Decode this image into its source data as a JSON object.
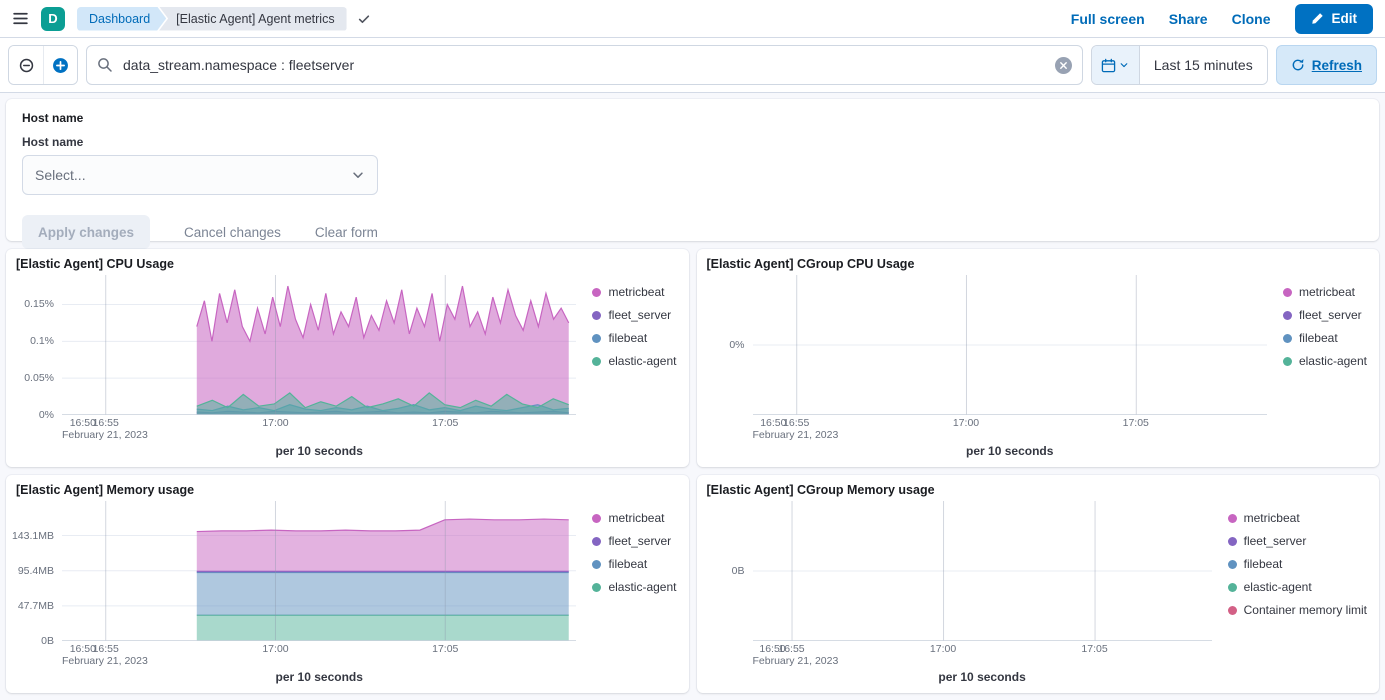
{
  "colors": {
    "primary": "#0071c2",
    "link": "#006bb8",
    "teal": "#0b9e94"
  },
  "header": {
    "space_initial": "D",
    "breadcrumbs": {
      "first": "Dashboard",
      "last": "[Elastic Agent] Agent metrics"
    },
    "actions": {
      "full_screen": "Full screen",
      "share": "Share",
      "clone": "Clone",
      "edit": "Edit"
    }
  },
  "query_bar": {
    "query": "data_stream.namespace : fleetserver",
    "time_range": "Last 15 minutes",
    "refresh_label": "Refresh"
  },
  "controls": {
    "panel_title": "Host name",
    "field_label": "Host name",
    "select_placeholder": "Select...",
    "apply_label": "Apply changes",
    "cancel_label": "Cancel changes",
    "clear_label": "Clear form"
  },
  "chart_data": [
    {
      "id": "cpu-usage",
      "type": "area",
      "title": "[Elastic Agent] CPU Usage",
      "x_title": "per 10 seconds",
      "date_label": "February 21, 2023",
      "x_ticks": [
        {
          "label": "16:50",
          "f": 0.015,
          "grid": false
        },
        {
          "label": "16:55",
          "f": 0.085,
          "grid": true
        },
        {
          "label": "17:00",
          "f": 0.415,
          "grid": true
        },
        {
          "label": "17:05",
          "f": 0.745,
          "grid": true
        }
      ],
      "y_ticks": [
        {
          "label": "0%",
          "v": 0
        },
        {
          "label": "0.05%",
          "v": 0.05
        },
        {
          "label": "0.1%",
          "v": 0.1
        },
        {
          "label": "0.15%",
          "v": 0.15
        }
      ],
      "ymin": 0,
      "ymax": 0.19,
      "y_unit": "%",
      "stacked": false,
      "x_range": [
        0.262,
        0.985
      ],
      "series": [
        {
          "name": "metricbeat",
          "color": "#C765C1",
          "values": [
            0.12,
            0.155,
            0.1,
            0.165,
            0.125,
            0.17,
            0.12,
            0.1,
            0.145,
            0.11,
            0.16,
            0.12,
            0.175,
            0.13,
            0.105,
            0.15,
            0.115,
            0.165,
            0.11,
            0.14,
            0.12,
            0.16,
            0.105,
            0.135,
            0.115,
            0.155,
            0.125,
            0.17,
            0.11,
            0.145,
            0.12,
            0.165,
            0.1,
            0.15,
            0.13,
            0.175,
            0.12,
            0.14,
            0.11,
            0.16,
            0.125,
            0.17,
            0.135,
            0.115,
            0.155,
            0.12,
            0.165,
            0.13,
            0.145,
            0.125
          ]
        },
        {
          "name": "fleet_server",
          "color": "#8465C2",
          "values": [
            0.004,
            0.003,
            0.005,
            0.004,
            0.003,
            0.005,
            0.004,
            0.003,
            0.004,
            0.005,
            0.003,
            0.004,
            0.005,
            0.003,
            0.004,
            0.003,
            0.005,
            0.004,
            0.003,
            0.005,
            0.004,
            0.003,
            0.004,
            0.005,
            0.003
          ]
        },
        {
          "name": "filebeat",
          "color": "#6092C0",
          "values": [
            0.008,
            0.006,
            0.012,
            0.007,
            0.01,
            0.006,
            0.014,
            0.008,
            0.006,
            0.01,
            0.007,
            0.012,
            0.006,
            0.009,
            0.014,
            0.007,
            0.01,
            0.006,
            0.012,
            0.008,
            0.006,
            0.01,
            0.014,
            0.007,
            0.009
          ]
        },
        {
          "name": "elastic-agent",
          "color": "#54B399",
          "values": [
            0.012,
            0.02,
            0.01,
            0.028,
            0.012,
            0.015,
            0.03,
            0.01,
            0.018,
            0.012,
            0.025,
            0.01,
            0.015,
            0.022,
            0.012,
            0.03,
            0.014,
            0.01,
            0.02,
            0.012,
            0.028,
            0.015,
            0.01,
            0.022,
            0.014
          ]
        }
      ]
    },
    {
      "id": "cgroup-cpu-usage",
      "type": "area",
      "title": "[Elastic Agent] CGroup CPU Usage",
      "x_title": "per 10 seconds",
      "date_label": "February 21, 2023",
      "x_ticks": [
        {
          "label": "16:50",
          "f": 0.015,
          "grid": false
        },
        {
          "label": "16:55",
          "f": 0.085,
          "grid": true
        },
        {
          "label": "17:00",
          "f": 0.415,
          "grid": true
        },
        {
          "label": "17:05",
          "f": 0.745,
          "grid": true
        }
      ],
      "y_ticks": [
        {
          "label": "0%",
          "v": 0
        }
      ],
      "ymin": -1,
      "ymax": 1,
      "y_unit": "%",
      "stacked": false,
      "x_range": [
        0.262,
        0.985
      ],
      "series": [
        {
          "name": "metricbeat",
          "color": "#C765C1",
          "values": []
        },
        {
          "name": "fleet_server",
          "color": "#8465C2",
          "values": []
        },
        {
          "name": "filebeat",
          "color": "#6092C0",
          "values": []
        },
        {
          "name": "elastic-agent",
          "color": "#54B399",
          "values": []
        }
      ]
    },
    {
      "id": "memory-usage",
      "type": "area",
      "title": "[Elastic Agent] Memory usage",
      "x_title": "per 10 seconds",
      "date_label": "February 21, 2023",
      "x_ticks": [
        {
          "label": "16:50",
          "f": 0.015,
          "grid": false
        },
        {
          "label": "16:55",
          "f": 0.085,
          "grid": true
        },
        {
          "label": "17:00",
          "f": 0.415,
          "grid": true
        },
        {
          "label": "17:05",
          "f": 0.745,
          "grid": true
        }
      ],
      "y_ticks": [
        {
          "label": "0B",
          "v": 0
        },
        {
          "label": "47.7MB",
          "v": 47.7
        },
        {
          "label": "95.4MB",
          "v": 95.4
        },
        {
          "label": "143.1MB",
          "v": 143.1
        }
      ],
      "ymin": 0,
      "ymax": 190,
      "y_unit": "MB",
      "stacked": true,
      "x_range": [
        0.262,
        0.985
      ],
      "series": [
        {
          "name": "metricbeat",
          "color": "#C765C1",
          "values": [
            54,
            55,
            55,
            56,
            55,
            55,
            56,
            55,
            55,
            56,
            70,
            71,
            70,
            70,
            71,
            70
          ]
        },
        {
          "name": "fleet_server",
          "color": "#8465C2",
          "values": [
            1.5,
            1.5,
            1.5,
            1.5,
            1.5,
            1.5,
            1.5,
            1.5,
            1.5,
            1.5,
            1.5,
            1.5,
            1.5,
            1.5,
            1.5,
            1.5
          ]
        },
        {
          "name": "filebeat",
          "color": "#6092C0",
          "values": [
            58,
            58,
            58,
            58,
            58,
            58,
            58,
            58,
            58,
            58,
            58,
            58,
            58,
            58,
            58,
            58
          ]
        },
        {
          "name": "elastic-agent",
          "color": "#54B399",
          "values": [
            35,
            35,
            35,
            35,
            35,
            35,
            35,
            35,
            35,
            35,
            35,
            35,
            35,
            35,
            35,
            35
          ]
        }
      ]
    },
    {
      "id": "cgroup-memory-usage",
      "type": "area",
      "title": "[Elastic Agent] CGroup Memory usage",
      "x_title": "per 10 seconds",
      "date_label": "February 21, 2023",
      "x_ticks": [
        {
          "label": "16:50",
          "f": 0.015,
          "grid": false
        },
        {
          "label": "16:55",
          "f": 0.085,
          "grid": true
        },
        {
          "label": "17:00",
          "f": 0.415,
          "grid": true
        },
        {
          "label": "17:05",
          "f": 0.745,
          "grid": true
        }
      ],
      "y_ticks": [
        {
          "label": "0B",
          "v": 0
        }
      ],
      "ymin": -1,
      "ymax": 1,
      "y_unit": "B",
      "stacked": false,
      "x_range": [
        0.262,
        0.985
      ],
      "series": [
        {
          "name": "metricbeat",
          "color": "#C765C1",
          "values": []
        },
        {
          "name": "fleet_server",
          "color": "#8465C2",
          "values": []
        },
        {
          "name": "filebeat",
          "color": "#6092C0",
          "values": []
        },
        {
          "name": "elastic-agent",
          "color": "#54B399",
          "values": []
        },
        {
          "name": "Container memory limit",
          "color": "#D36086",
          "values": []
        }
      ]
    }
  ]
}
